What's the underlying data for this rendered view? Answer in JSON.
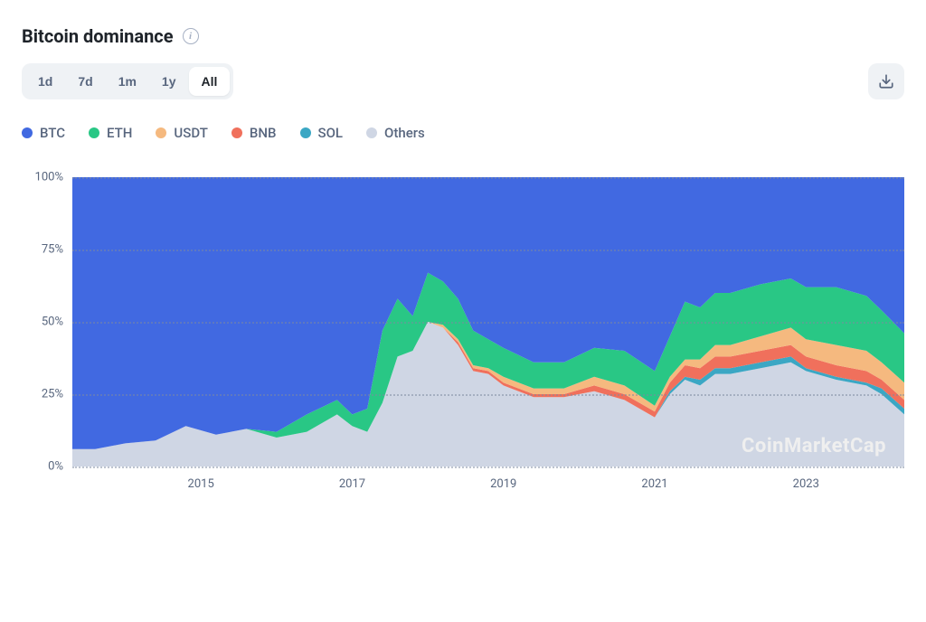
{
  "header": {
    "title": "Bitcoin dominance"
  },
  "toolbar": {
    "ranges": [
      "1d",
      "7d",
      "1m",
      "1y",
      "All"
    ],
    "active_range": "All"
  },
  "legend": [
    {
      "key": "BTC",
      "label": "BTC",
      "color": "#4169e1"
    },
    {
      "key": "ETH",
      "label": "ETH",
      "color": "#29c785"
    },
    {
      "key": "USDT",
      "label": "USDT",
      "color": "#f5b97f"
    },
    {
      "key": "BNB",
      "label": "BNB",
      "color": "#f0705c"
    },
    {
      "key": "SOL",
      "label": "SOL",
      "color": "#3ba7c4"
    },
    {
      "key": "Others",
      "label": "Others",
      "color": "#cfd6e4"
    }
  ],
  "chart": {
    "type": "stacked-area",
    "background_color": "#ffffff",
    "grid_color": "#7d8aa0",
    "ylim": [
      0,
      100
    ],
    "yticks": [
      0,
      25,
      50,
      75,
      100
    ],
    "ytick_suffix": "%",
    "x_range": [
      2013.3,
      2024.3
    ],
    "xticks": [
      2015,
      2017,
      2019,
      2021,
      2023
    ],
    "series_order": [
      "Others",
      "SOL",
      "BNB",
      "USDT",
      "ETH",
      "BTC"
    ],
    "colors": {
      "BTC": "#4169e1",
      "ETH": "#29c785",
      "USDT": "#f5b97f",
      "BNB": "#f0705c",
      "SOL": "#3ba7c4",
      "Others": "#cfd6e4"
    },
    "watermark": "CoinMarketCap",
    "timepoints": [
      2013.3,
      2013.6,
      2014.0,
      2014.4,
      2014.8,
      2015.2,
      2015.6,
      2016.0,
      2016.4,
      2016.8,
      2017.0,
      2017.2,
      2017.4,
      2017.6,
      2017.8,
      2018.0,
      2018.2,
      2018.4,
      2018.6,
      2018.8,
      2019.0,
      2019.4,
      2019.8,
      2020.2,
      2020.6,
      2021.0,
      2021.2,
      2021.4,
      2021.6,
      2021.8,
      2022.0,
      2022.4,
      2022.8,
      2023.0,
      2023.4,
      2023.8,
      2024.0,
      2024.3
    ],
    "stacks": {
      "Others": [
        6,
        6,
        8,
        9,
        14,
        11,
        13,
        10,
        12,
        18,
        14,
        12,
        22,
        38,
        40,
        50,
        48,
        42,
        33,
        32,
        28,
        24,
        24,
        26,
        23,
        17,
        25,
        30,
        28,
        32,
        32,
        34,
        36,
        33,
        30,
        28,
        25,
        18
      ],
      "SOL": [
        0,
        0,
        0,
        0,
        0,
        0,
        0,
        0,
        0,
        0,
        0,
        0,
        0,
        0,
        0,
        0,
        0,
        0,
        0,
        0,
        0,
        0,
        0,
        0,
        0,
        0,
        1,
        1,
        2,
        2,
        2,
        2,
        2,
        1,
        1,
        1,
        2,
        2
      ],
      "BNB": [
        0,
        0,
        0,
        0,
        0,
        0,
        0,
        0,
        0,
        0,
        0,
        0,
        0,
        0,
        0,
        0,
        0,
        1,
        1,
        1,
        1,
        1,
        1,
        2,
        2,
        2,
        3,
        4,
        4,
        4,
        4,
        4,
        4,
        4,
        4,
        4,
        3,
        3
      ],
      "USDT": [
        0,
        0,
        0,
        0,
        0,
        0,
        0,
        0,
        0,
        0,
        0,
        0,
        0,
        0,
        0,
        0,
        1,
        1,
        1,
        1,
        2,
        2,
        2,
        3,
        3,
        2,
        2,
        2,
        3,
        4,
        4,
        5,
        6,
        6,
        7,
        7,
        6,
        6
      ],
      "ETH": [
        0,
        0,
        0,
        0,
        0,
        0,
        0,
        2,
        6,
        5,
        4,
        8,
        25,
        20,
        12,
        17,
        15,
        14,
        12,
        10,
        10,
        9,
        9,
        10,
        12,
        12,
        14,
        20,
        18,
        18,
        18,
        18,
        17,
        18,
        20,
        19,
        18,
        17
      ],
      "BTC": [
        94,
        94,
        92,
        91,
        86,
        89,
        87,
        88,
        82,
        77,
        82,
        80,
        53,
        42,
        48,
        33,
        36,
        42,
        53,
        56,
        59,
        64,
        64,
        59,
        60,
        67,
        55,
        43,
        45,
        40,
        40,
        37,
        35,
        38,
        38,
        41,
        46,
        54
      ]
    }
  }
}
